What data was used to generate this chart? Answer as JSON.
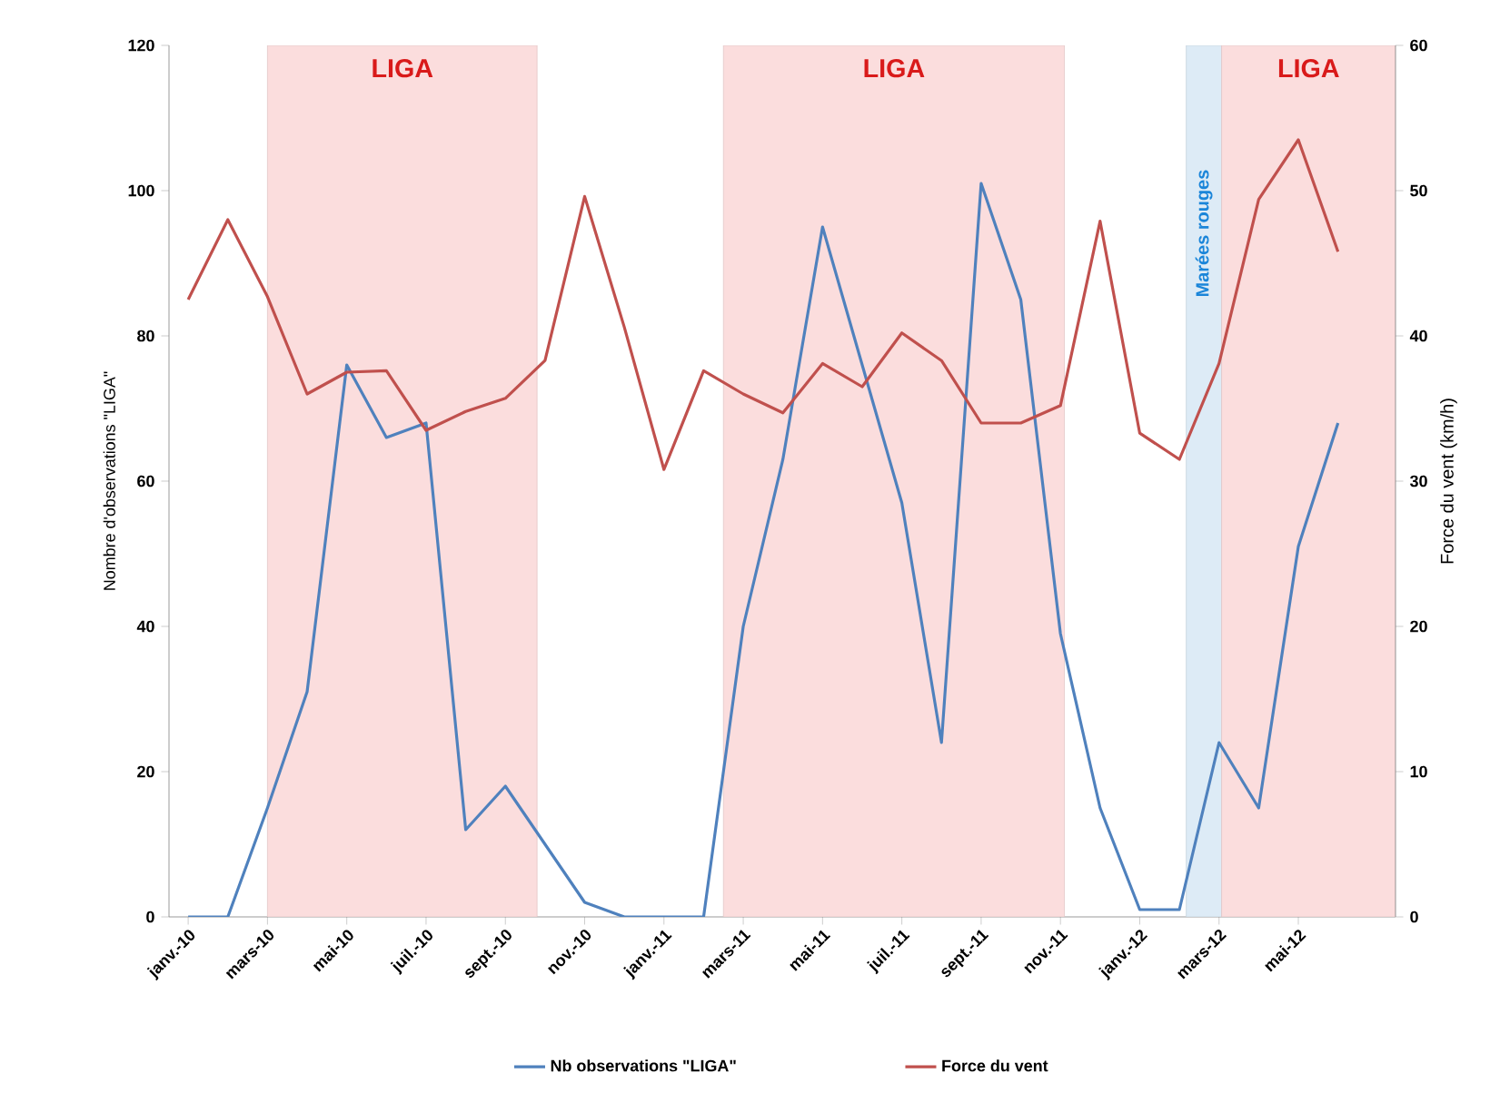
{
  "chart_data": {
    "type": "line",
    "ylabel": "Nombre d'observations \"LIGA\"",
    "y2label": "Force du vent (km/h)",
    "x": [
      "2010-01",
      "2010-02",
      "2010-03",
      "2010-04",
      "2010-05",
      "2010-06",
      "2010-07",
      "2010-08",
      "2010-09",
      "2010-10",
      "2010-11",
      "2010-12",
      "2011-01",
      "2011-02",
      "2011-03",
      "2011-04",
      "2011-05",
      "2011-06",
      "2011-07",
      "2011-08",
      "2011-09",
      "2011-10",
      "2011-11",
      "2011-12",
      "2012-01",
      "2012-02",
      "2012-03",
      "2012-04",
      "2012-05",
      "2012-06"
    ],
    "series": [
      {
        "name": "Nb observations \"LIGA\"",
        "color": "#4f81bd",
        "values": [
          0,
          0,
          15,
          31,
          76,
          66,
          68,
          12,
          18,
          10,
          2,
          0,
          0,
          0,
          40,
          63,
          95,
          76,
          57,
          24,
          101,
          85,
          39,
          15,
          1,
          1,
          24,
          15,
          51,
          68
        ]
      },
      {
        "name": "Force du vent",
        "color": "#c0504d",
        "axis": "y2",
        "values": [
          42.5,
          48,
          42.7,
          36,
          37.5,
          37.6,
          33.5,
          34.8,
          35.7,
          38.3,
          49.6,
          40.6,
          30.8,
          37.6,
          36,
          34.7,
          38.1,
          36.5,
          40.2,
          38.3,
          34,
          34,
          35.2,
          47.9,
          33.3,
          31.5,
          38.1,
          49.4,
          53.5,
          45.8
        ]
      }
    ],
    "xlim": [
      "2009-12-17",
      "2012-07-15"
    ],
    "xticks": [
      {
        "value": "2010-01",
        "label": "janv.-10"
      },
      {
        "value": "2010-03",
        "label": "mars-10"
      },
      {
        "value": "2010-05",
        "label": "mai-10"
      },
      {
        "value": "2010-07",
        "label": "juil.-10"
      },
      {
        "value": "2010-09",
        "label": "sept.-10"
      },
      {
        "value": "2010-11",
        "label": "nov.-10"
      },
      {
        "value": "2011-01",
        "label": "janv.-11"
      },
      {
        "value": "2011-03",
        "label": "mars-11"
      },
      {
        "value": "2011-05",
        "label": "mai-11"
      },
      {
        "value": "2011-07",
        "label": "juil.-11"
      },
      {
        "value": "2011-09",
        "label": "sept.-11"
      },
      {
        "value": "2011-11",
        "label": "nov.-11"
      },
      {
        "value": "2012-01",
        "label": "janv.-12"
      },
      {
        "value": "2012-03",
        "label": "mars-12"
      },
      {
        "value": "2012-05",
        "label": "mai-12"
      }
    ],
    "ylim": [
      0,
      120
    ],
    "yticks": [
      0,
      20,
      40,
      60,
      80,
      100,
      120
    ],
    "y2lim": [
      0,
      60
    ],
    "y2ticks": [
      0,
      10,
      20,
      30,
      40,
      50,
      60
    ],
    "bands": [
      {
        "axis": "x",
        "from": "2010-03-01",
        "to": "2010-09-25",
        "label": "LIGA",
        "color": "#fbdddd"
      },
      {
        "axis": "x",
        "from": "2011-02-15",
        "to": "2011-11-04",
        "label": "LIGA",
        "color": "#fbdddd"
      },
      {
        "axis": "x",
        "from": "2012-02-06",
        "to": "2012-03-03",
        "label": "Marées rouges",
        "color": "#ddebf6"
      },
      {
        "axis": "x",
        "from": "2012-03-03",
        "to": "2012-07-15",
        "label": "LIGA",
        "color": "#fbdddd"
      }
    ],
    "grid": false,
    "legend": "bottom",
    "marker": "none",
    "line_style": "solid"
  }
}
